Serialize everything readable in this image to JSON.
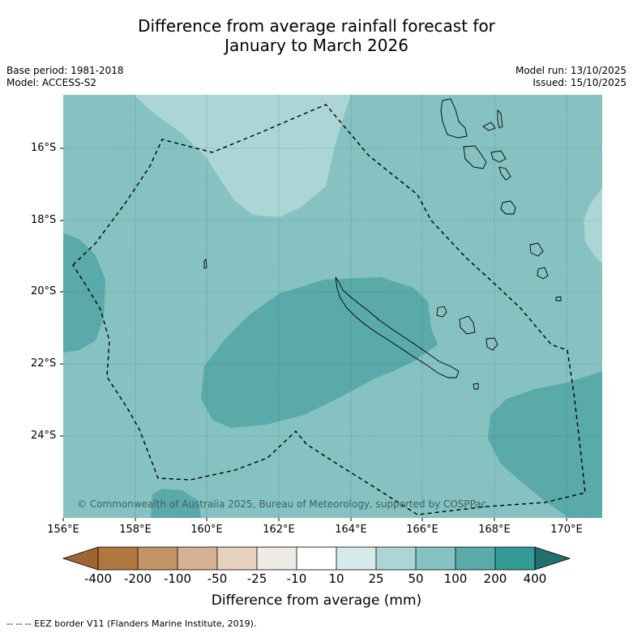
{
  "title": {
    "line1": "Difference from average rainfall forecast for",
    "line2": "January to March 2026"
  },
  "meta": {
    "base_period": "Base period: 1981-2018",
    "model": "Model: ACCESS-S2",
    "model_run": "Model run: 13/10/2025",
    "issued": "Issued: 15/10/2025"
  },
  "map": {
    "latitude_labels": [
      "16°S",
      "18°S",
      "20°S",
      "22°S",
      "24°S"
    ],
    "longitude_labels": [
      "156°E",
      "158°E",
      "160°E",
      "162°E",
      "164°E",
      "166°E",
      "168°E",
      "170°E"
    ],
    "watermark": "© Commonwealth of Australia 2025, Bureau of Meteorology, supported by COSPPac",
    "colors": {
      "base_50_100": "#86c2c1",
      "light_25_50": "#acd6d6",
      "dark_100_200": "#5aaaaa",
      "border": "#000000"
    }
  },
  "colorbar": {
    "labels": [
      "-400",
      "-200",
      "-100",
      "-50",
      "-25",
      "-10",
      "10",
      "25",
      "50",
      "100",
      "200",
      "400"
    ],
    "colors": [
      "#9e6431",
      "#b0773e",
      "#c29468",
      "#d4b293",
      "#e6d1bd",
      "#eeebe6",
      "#ffffff",
      "#d6ebe9",
      "#acd6d6",
      "#86c2c1",
      "#5aaaaa",
      "#349a96",
      "#21706c"
    ],
    "title": "Difference from average (mm)"
  },
  "footnote": "-- -- -- EEZ border V11 (Flanders Marine Institute, 2019)."
}
